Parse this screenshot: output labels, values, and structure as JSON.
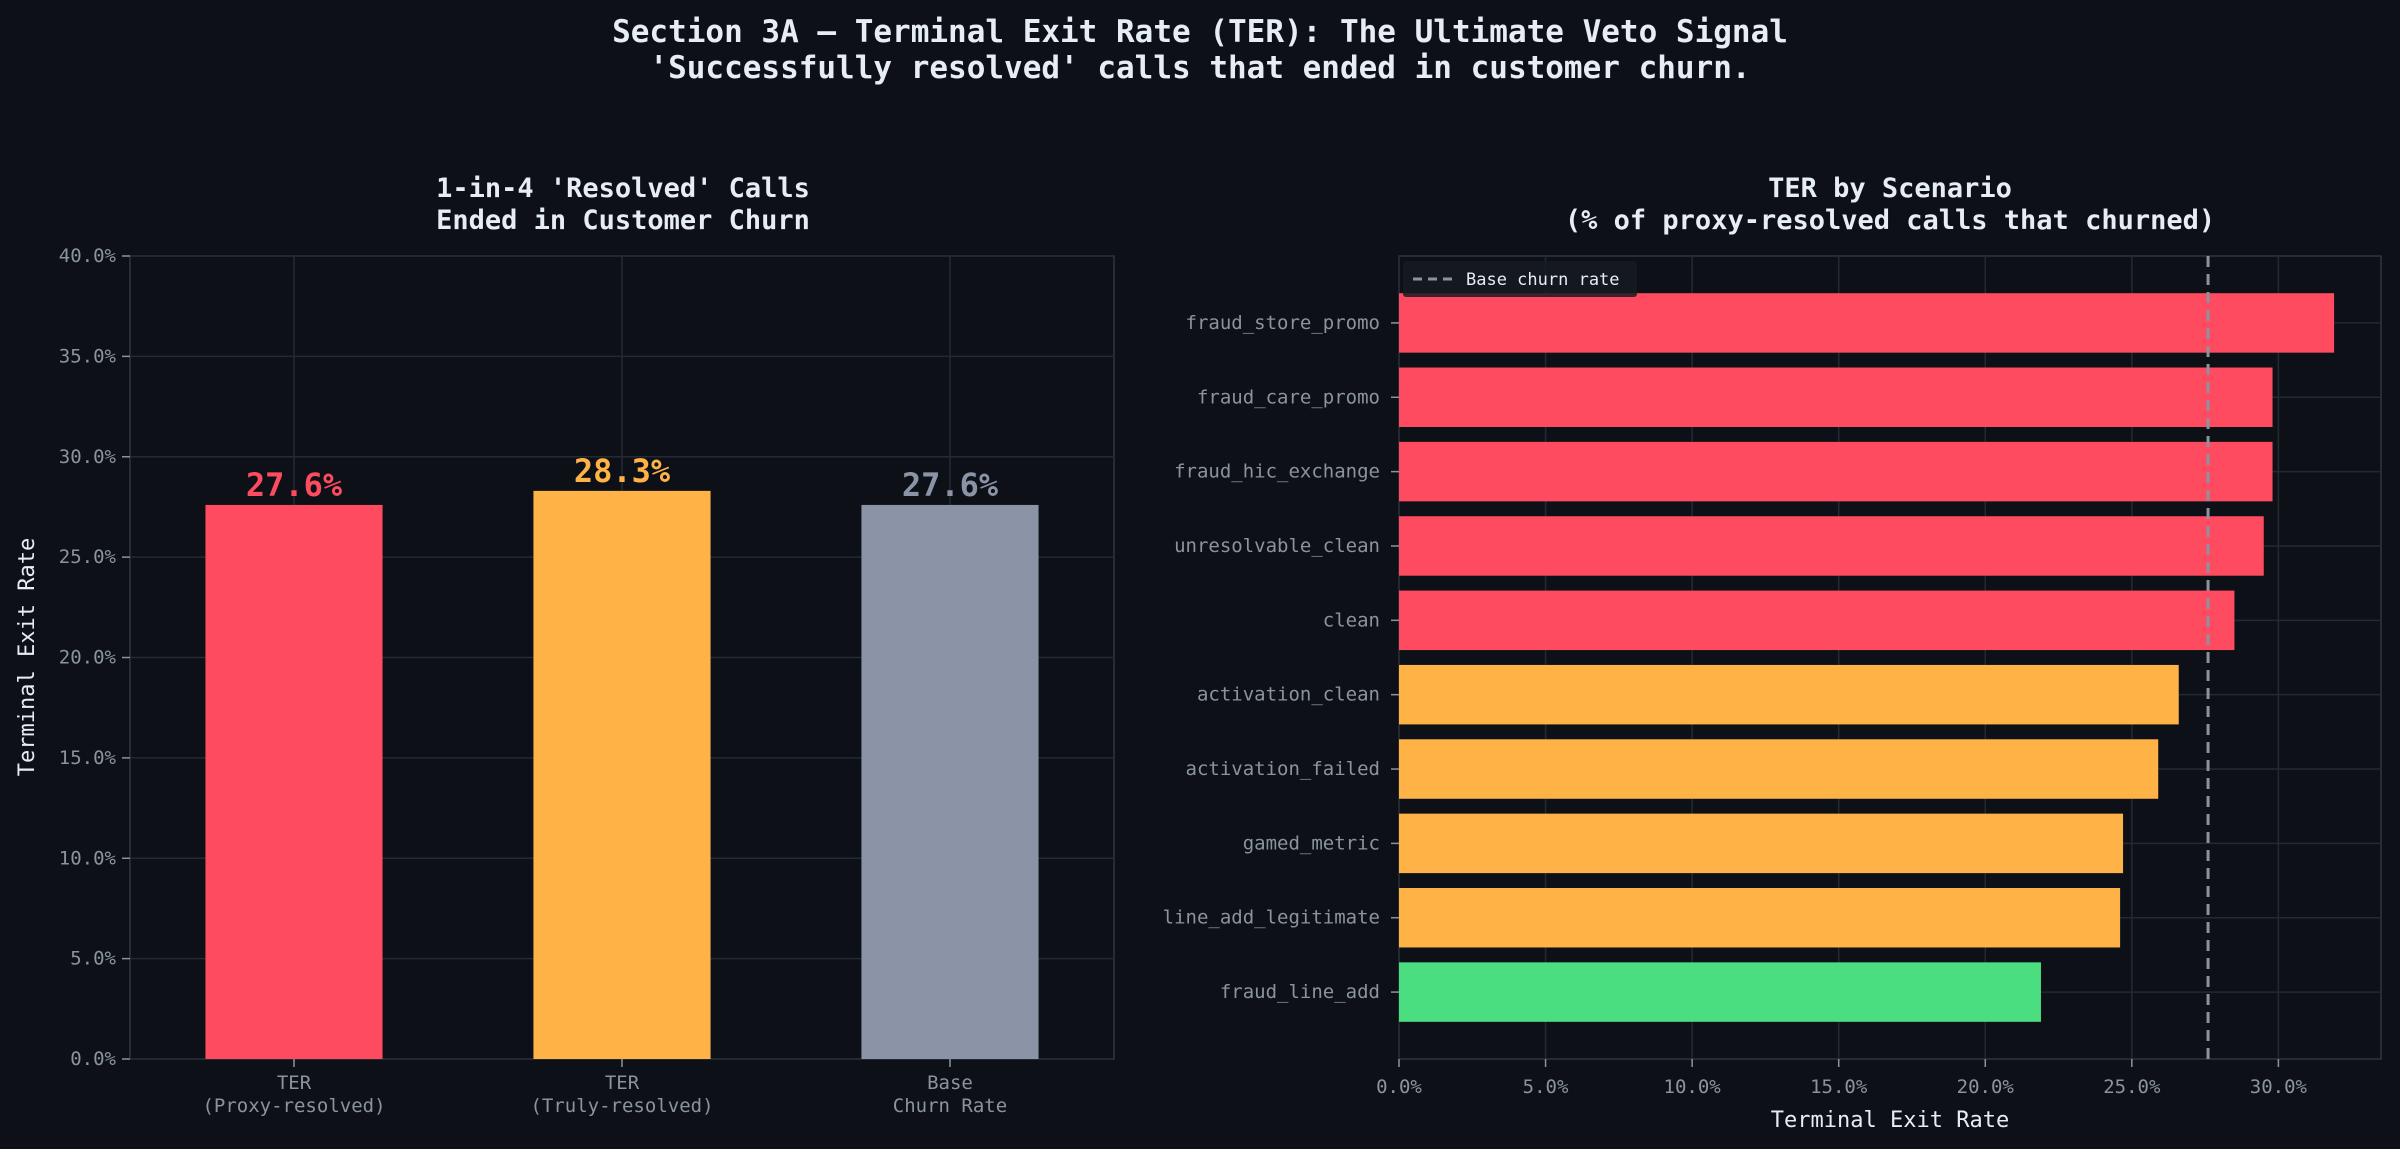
{
  "figure": {
    "title_line1": "Section 3A — Terminal Exit Rate (TER): The Ultimate Veto Signal",
    "title_line2": "'Successfully resolved' calls that ended in customer churn."
  },
  "chart_data": [
    {
      "type": "bar",
      "title_line1": "1-in-4 'Resolved' Calls",
      "title_line2": "Ended in Customer Churn",
      "categories": [
        [
          "TER",
          "(Proxy-resolved)"
        ],
        [
          "TER",
          "(Truly-resolved)"
        ],
        [
          "Base",
          "Churn Rate"
        ]
      ],
      "values": [
        27.6,
        28.3,
        27.6
      ],
      "value_labels": [
        "27.6%",
        "28.3%",
        "27.6%"
      ],
      "colors": [
        "#ff4b5f",
        "#ffb347",
        "#8b93a7"
      ],
      "ylabel": "Terminal Exit Rate",
      "ylim": [
        0,
        40
      ],
      "yticks": [
        "0.0%",
        "5.0%",
        "10.0%",
        "15.0%",
        "20.0%",
        "25.0%",
        "30.0%",
        "35.0%",
        "40.0%"
      ],
      "grid": true
    },
    {
      "type": "bar-horizontal",
      "title_line1": "TER by Scenario",
      "title_line2": "(% of proxy-resolved calls that churned)",
      "categories": [
        "fraud_store_promo",
        "fraud_care_promo",
        "fraud_hic_exchange",
        "unresolvable_clean",
        "clean",
        "activation_clean",
        "activation_failed",
        "gamed_metric",
        "line_add_legitimate",
        "fraud_line_add"
      ],
      "values": [
        31.9,
        29.8,
        29.8,
        29.5,
        28.5,
        26.6,
        25.9,
        24.7,
        24.6,
        21.9
      ],
      "colors": [
        "#ff4b5f",
        "#ff4b5f",
        "#ff4b5f",
        "#ff4b5f",
        "#ff4b5f",
        "#ffb347",
        "#ffb347",
        "#ffb347",
        "#ffb347",
        "#4ade80"
      ],
      "reference_line": {
        "value": 27.6,
        "label": "Base churn rate",
        "color": "#8b949e"
      },
      "xlabel": "Terminal Exit Rate",
      "xlim": [
        0,
        33.5
      ],
      "xticks": [
        "0.0%",
        "5.0%",
        "10.0%",
        "15.0%",
        "20.0%",
        "25.0%",
        "30.0%"
      ],
      "legend_position": "top-left",
      "grid": true
    }
  ]
}
